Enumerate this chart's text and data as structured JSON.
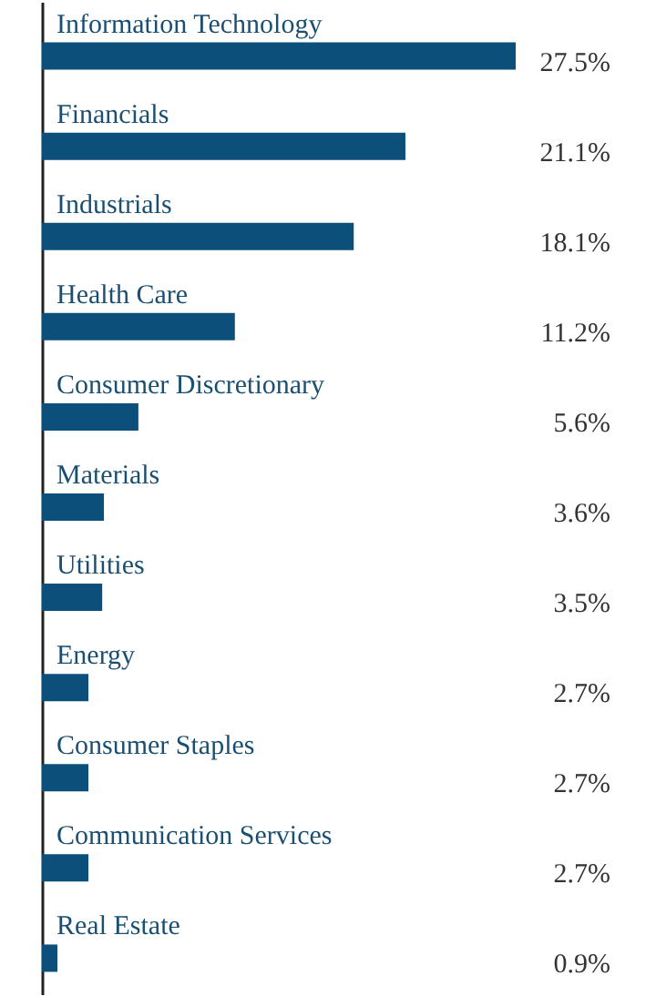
{
  "chart_data": {
    "type": "bar",
    "orientation": "horizontal",
    "categories": [
      "Information Technology",
      "Financials",
      "Industrials",
      "Health Care",
      "Consumer Discretionary",
      "Materials",
      "Utilities",
      "Energy",
      "Consumer Staples",
      "Communication Services",
      "Real Estate"
    ],
    "values": [
      27.5,
      21.1,
      18.1,
      11.2,
      5.6,
      3.6,
      3.5,
      2.7,
      2.7,
      2.7,
      0.9
    ],
    "value_labels": [
      "27.5%",
      "21.1%",
      "18.1%",
      "11.2%",
      "5.6%",
      "3.6%",
      "3.5%",
      "2.7%",
      "2.7%",
      "2.7%",
      "0.9%"
    ],
    "color": "#0b4f7a",
    "tick_labels": false,
    "grid": false
  }
}
